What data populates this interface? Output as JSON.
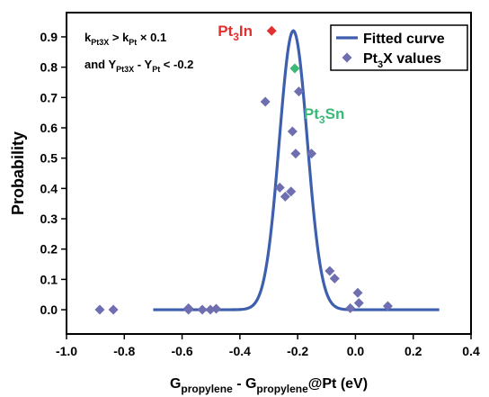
{
  "chart_data": {
    "type": "scatter",
    "x_label": {
      "main": "G",
      "sub1": "propylene",
      "mid": " - G",
      "sub2": "propylene",
      "tail": "@Pt (eV)"
    },
    "y_label": "Probability",
    "xlim": [
      -1.0,
      0.4
    ],
    "ylim": [
      -0.08,
      0.98
    ],
    "x_ticks": [
      -1.0,
      -0.8,
      -0.6,
      -0.4,
      -0.2,
      0.0,
      0.2,
      0.4
    ],
    "y_ticks": [
      0.0,
      0.1,
      0.2,
      0.3,
      0.4,
      0.5,
      0.6,
      0.7,
      0.8,
      0.9
    ],
    "condition": {
      "line1": {
        "a": "k",
        "a_sub": "Pt3X",
        "op": " > k",
        "b_sub": "Pt",
        "tail": " × 0.1"
      },
      "line2": {
        "a": "and Y",
        "a_sub": "Pt3X",
        "op": " - Y",
        "b_sub": "Pt",
        "tail": " < -0.2"
      }
    },
    "legend": {
      "position": "top-right",
      "entries": [
        {
          "text": "Fitted curve"
        },
        {
          "pre": "Pt",
          "sub": "3",
          "post": "X values"
        }
      ]
    },
    "fitted_curve": {
      "mean": -0.215,
      "sigma": 0.0485,
      "amplitude": 0.92,
      "x_range": [
        -0.7,
        0.29
      ],
      "color": "#3d5fad"
    },
    "points": {
      "color": "#6e6eb0",
      "x": [
        -0.885,
        -0.838,
        -0.578,
        -0.578,
        -0.53,
        -0.502,
        -0.482,
        -0.312,
        -0.262,
        -0.243,
        -0.223,
        -0.218,
        -0.207,
        -0.196,
        -0.152,
        -0.089,
        -0.072,
        -0.018,
        0.008,
        0.012,
        0.112
      ],
      "y": [
        0.0,
        0.0,
        0.0,
        0.005,
        0.0,
        0.0,
        0.003,
        0.686,
        0.403,
        0.373,
        0.39,
        0.588,
        0.515,
        0.72,
        0.515,
        0.128,
        0.103,
        0.005,
        0.056,
        0.022,
        0.012
      ]
    },
    "highlighted": [
      {
        "pre": "Pt",
        "sub": "3",
        "post": "In",
        "x": -0.29,
        "y": 0.92,
        "color": "#e03030"
      },
      {
        "pre": "Pt",
        "sub": "3",
        "post": "Sn",
        "x": -0.21,
        "y": 0.796,
        "color": "#3cb878"
      }
    ]
  }
}
